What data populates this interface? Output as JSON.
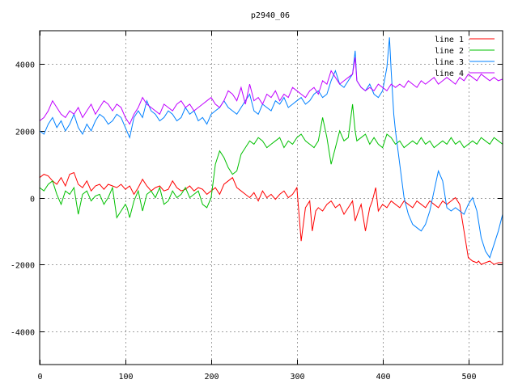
{
  "chart_data": {
    "type": "line",
    "title": "p2940_06",
    "xlim": [
      0,
      540
    ],
    "ylim": [
      -5000,
      5000
    ],
    "xticks": [
      0,
      100,
      200,
      300,
      400,
      500
    ],
    "yticks": [
      -4000,
      -2000,
      0,
      2000,
      4000
    ],
    "grid": true,
    "legend_position": "top-right",
    "series": [
      {
        "name": "line 1",
        "color": "#ff0000",
        "x": [
          0,
          5,
          10,
          15,
          20,
          25,
          30,
          35,
          40,
          45,
          50,
          55,
          60,
          65,
          70,
          75,
          80,
          85,
          90,
          95,
          100,
          105,
          110,
          115,
          120,
          125,
          130,
          135,
          140,
          145,
          150,
          155,
          160,
          165,
          170,
          175,
          180,
          185,
          190,
          195,
          200,
          205,
          210,
          215,
          220,
          225,
          230,
          235,
          240,
          245,
          250,
          255,
          260,
          265,
          270,
          275,
          280,
          285,
          290,
          295,
          300,
          305,
          310,
          315,
          318,
          322,
          325,
          330,
          335,
          340,
          345,
          350,
          355,
          360,
          365,
          368,
          372,
          375,
          380,
          385,
          388,
          392,
          395,
          400,
          405,
          410,
          415,
          420,
          425,
          430,
          435,
          440,
          445,
          450,
          455,
          460,
          465,
          470,
          475,
          480,
          485,
          490,
          495,
          500,
          505,
          510,
          512,
          515,
          520,
          525,
          530,
          535,
          540
        ],
        "y": [
          600,
          700,
          650,
          500,
          400,
          600,
          350,
          700,
          750,
          400,
          300,
          500,
          200,
          350,
          400,
          250,
          400,
          350,
          300,
          400,
          250,
          350,
          100,
          300,
          550,
          350,
          200,
          300,
          350,
          200,
          250,
          500,
          300,
          200,
          250,
          350,
          200,
          300,
          250,
          100,
          200,
          300,
          100,
          400,
          500,
          600,
          300,
          200,
          100,
          0,
          150,
          -100,
          200,
          0,
          100,
          -50,
          100,
          200,
          0,
          100,
          300,
          -1300,
          -300,
          -100,
          -1000,
          -400,
          -300,
          -400,
          -200,
          -100,
          -300,
          -200,
          -500,
          -300,
          -100,
          -700,
          -400,
          -200,
          -1000,
          -300,
          -100,
          300,
          -400,
          -200,
          -300,
          -100,
          -200,
          -300,
          -100,
          -200,
          -300,
          -100,
          -200,
          -300,
          -100,
          -200,
          -300,
          -100,
          -200,
          -100,
          0,
          -200,
          -1000,
          -1800,
          -1900,
          -1950,
          -1900,
          -2000,
          -1950,
          -1900,
          -2000,
          -1950,
          -1950
        ]
      },
      {
        "name": "line 2",
        "color": "#00c000",
        "x": [
          0,
          5,
          10,
          15,
          20,
          25,
          30,
          35,
          40,
          45,
          50,
          55,
          60,
          65,
          70,
          75,
          80,
          85,
          90,
          95,
          100,
          102,
          105,
          110,
          115,
          120,
          125,
          130,
          135,
          140,
          145,
          150,
          155,
          160,
          165,
          170,
          175,
          180,
          185,
          190,
          195,
          200,
          205,
          210,
          215,
          220,
          225,
          230,
          235,
          240,
          245,
          250,
          255,
          260,
          265,
          270,
          275,
          280,
          285,
          290,
          295,
          300,
          305,
          310,
          315,
          320,
          325,
          330,
          335,
          340,
          345,
          350,
          355,
          360,
          365,
          368,
          370,
          375,
          380,
          385,
          390,
          395,
          400,
          405,
          410,
          415,
          420,
          425,
          430,
          435,
          440,
          445,
          450,
          455,
          460,
          465,
          470,
          475,
          480,
          485,
          490,
          495,
          500,
          505,
          510,
          515,
          520,
          525,
          530,
          535,
          540
        ],
        "y": [
          300,
          200,
          400,
          500,
          100,
          -200,
          200,
          100,
          300,
          -500,
          100,
          200,
          -100,
          50,
          100,
          -200,
          0,
          300,
          -600,
          -400,
          -200,
          -300,
          -600,
          -100,
          200,
          -400,
          100,
          200,
          0,
          300,
          -200,
          -100,
          200,
          0,
          100,
          300,
          0,
          100,
          200,
          -200,
          -300,
          0,
          1000,
          1400,
          1200,
          900,
          700,
          800,
          1300,
          1500,
          1700,
          1600,
          1800,
          1700,
          1500,
          1600,
          1700,
          1800,
          1500,
          1700,
          1600,
          1800,
          1900,
          1700,
          1600,
          1500,
          1700,
          2400,
          1800,
          1000,
          1500,
          2000,
          1700,
          1800,
          2800,
          2000,
          1700,
          1800,
          1900,
          1600,
          1800,
          1600,
          1500,
          1900,
          1800,
          1600,
          1700,
          1500,
          1600,
          1700,
          1600,
          1800,
          1600,
          1700,
          1500,
          1600,
          1700,
          1600,
          1800,
          1600,
          1700,
          1500,
          1600,
          1700,
          1600,
          1800,
          1700,
          1600,
          1800,
          1700,
          1600
        ]
      },
      {
        "name": "line 3",
        "color": "#0080ff",
        "x": [
          0,
          5,
          10,
          15,
          20,
          25,
          30,
          35,
          40,
          45,
          50,
          55,
          60,
          65,
          70,
          75,
          80,
          85,
          90,
          95,
          100,
          105,
          110,
          115,
          120,
          125,
          130,
          135,
          140,
          145,
          150,
          155,
          160,
          165,
          170,
          175,
          180,
          185,
          190,
          195,
          200,
          205,
          210,
          215,
          220,
          225,
          230,
          235,
          240,
          245,
          250,
          255,
          260,
          265,
          270,
          275,
          280,
          285,
          290,
          295,
          300,
          305,
          310,
          315,
          320,
          325,
          330,
          335,
          340,
          345,
          350,
          355,
          360,
          365,
          368,
          370,
          375,
          380,
          385,
          390,
          395,
          400,
          405,
          408,
          410,
          413,
          415,
          420,
          425,
          430,
          435,
          440,
          445,
          450,
          455,
          460,
          465,
          470,
          475,
          480,
          485,
          490,
          495,
          500,
          505,
          510,
          515,
          520,
          525,
          530,
          535,
          540
        ],
        "y": [
          2000,
          1900,
          2200,
          2400,
          2100,
          2300,
          2000,
          2200,
          2500,
          2100,
          1900,
          2200,
          2000,
          2300,
          2500,
          2400,
          2200,
          2300,
          2500,
          2400,
          2100,
          1800,
          2400,
          2600,
          2400,
          2900,
          2600,
          2500,
          2300,
          2400,
          2600,
          2500,
          2300,
          2400,
          2700,
          2500,
          2600,
          2300,
          2400,
          2200,
          2500,
          2600,
          2700,
          2900,
          2700,
          2600,
          2500,
          2700,
          2900,
          3100,
          2600,
          2500,
          2800,
          2700,
          2600,
          2900,
          2800,
          3000,
          2700,
          2800,
          2900,
          3000,
          2800,
          2900,
          3100,
          3200,
          3000,
          3100,
          3500,
          3800,
          3400,
          3300,
          3500,
          3700,
          4400,
          3500,
          3300,
          3200,
          3400,
          3100,
          3000,
          3200,
          3900,
          4800,
          3800,
          2500,
          2000,
          1000,
          0,
          -500,
          -800,
          -900,
          -1000,
          -800,
          -400,
          200,
          800,
          500,
          -300,
          -400,
          -300,
          -400,
          -500,
          -200,
          0,
          -400,
          -1200,
          -1600,
          -1800,
          -1400,
          -1000,
          -500
        ]
      },
      {
        "name": "line 4",
        "color": "#c000ff",
        "x": [
          0,
          5,
          10,
          15,
          20,
          25,
          30,
          35,
          40,
          45,
          50,
          55,
          60,
          65,
          70,
          75,
          80,
          85,
          90,
          95,
          100,
          105,
          110,
          115,
          120,
          125,
          130,
          135,
          140,
          145,
          150,
          155,
          160,
          165,
          170,
          175,
          180,
          185,
          190,
          195,
          200,
          205,
          210,
          215,
          220,
          225,
          230,
          235,
          240,
          245,
          250,
          255,
          260,
          265,
          270,
          275,
          280,
          285,
          290,
          295,
          300,
          305,
          310,
          315,
          320,
          325,
          330,
          335,
          340,
          345,
          350,
          355,
          360,
          365,
          368,
          370,
          375,
          380,
          385,
          390,
          395,
          400,
          405,
          410,
          415,
          420,
          425,
          430,
          435,
          440,
          445,
          450,
          455,
          460,
          465,
          470,
          475,
          480,
          485,
          490,
          495,
          500,
          505,
          510,
          515,
          520,
          525,
          530,
          535,
          540
        ],
        "y": [
          2300,
          2400,
          2600,
          2900,
          2700,
          2500,
          2400,
          2600,
          2500,
          2700,
          2400,
          2600,
          2800,
          2500,
          2700,
          2900,
          2800,
          2600,
          2800,
          2700,
          2400,
          2200,
          2500,
          2700,
          3000,
          2800,
          2700,
          2600,
          2500,
          2800,
          2700,
          2600,
          2800,
          2900,
          2700,
          2800,
          2600,
          2700,
          2800,
          2900,
          3000,
          2800,
          2700,
          2900,
          3200,
          3100,
          2900,
          3300,
          2800,
          3400,
          2900,
          3000,
          2800,
          3100,
          3000,
          3200,
          2900,
          3100,
          3000,
          3300,
          3200,
          3100,
          3000,
          3200,
          3300,
          3100,
          3500,
          3400,
          3800,
          3600,
          3400,
          3500,
          3600,
          3700,
          4200,
          3500,
          3300,
          3200,
          3300,
          3200,
          3400,
          3300,
          3200,
          3400,
          3300,
          3400,
          3300,
          3500,
          3400,
          3300,
          3500,
          3400,
          3500,
          3600,
          3400,
          3500,
          3600,
          3500,
          3400,
          3600,
          3500,
          3700,
          3600,
          3500,
          3700,
          3600,
          3500,
          3600,
          3500,
          3550
        ]
      }
    ]
  }
}
